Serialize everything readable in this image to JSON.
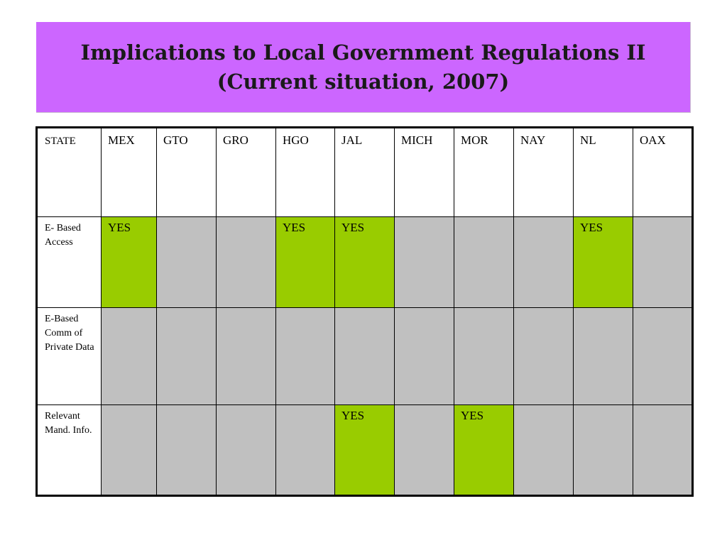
{
  "title": {
    "line1": "Implications to Local Government Regulations II",
    "line2": "(Current situation, 2007)"
  },
  "colors": {
    "title_background": "#cc66ff",
    "yes_cell": "#99cc00",
    "empty_cell": "#c0c0c0"
  },
  "table": {
    "header": [
      "STATE",
      "MEX",
      "GTO",
      "GRO",
      "HGO",
      "JAL",
      "MICH",
      "MOR",
      "NAY",
      "NL",
      "OAX"
    ],
    "rows": [
      {
        "label": "E- Based Access",
        "cells": [
          "YES",
          "",
          "",
          "YES",
          "YES",
          "",
          "",
          "",
          "YES",
          ""
        ]
      },
      {
        "label": "E-Based Comm of Private Data",
        "cells": [
          "",
          "",
          "",
          "",
          "",
          "",
          "",
          "",
          "",
          ""
        ]
      },
      {
        "label": "Relevant Mand. Info.",
        "cells": [
          "",
          "",
          "",
          "",
          "YES",
          "",
          "YES",
          "",
          "",
          ""
        ]
      }
    ]
  }
}
